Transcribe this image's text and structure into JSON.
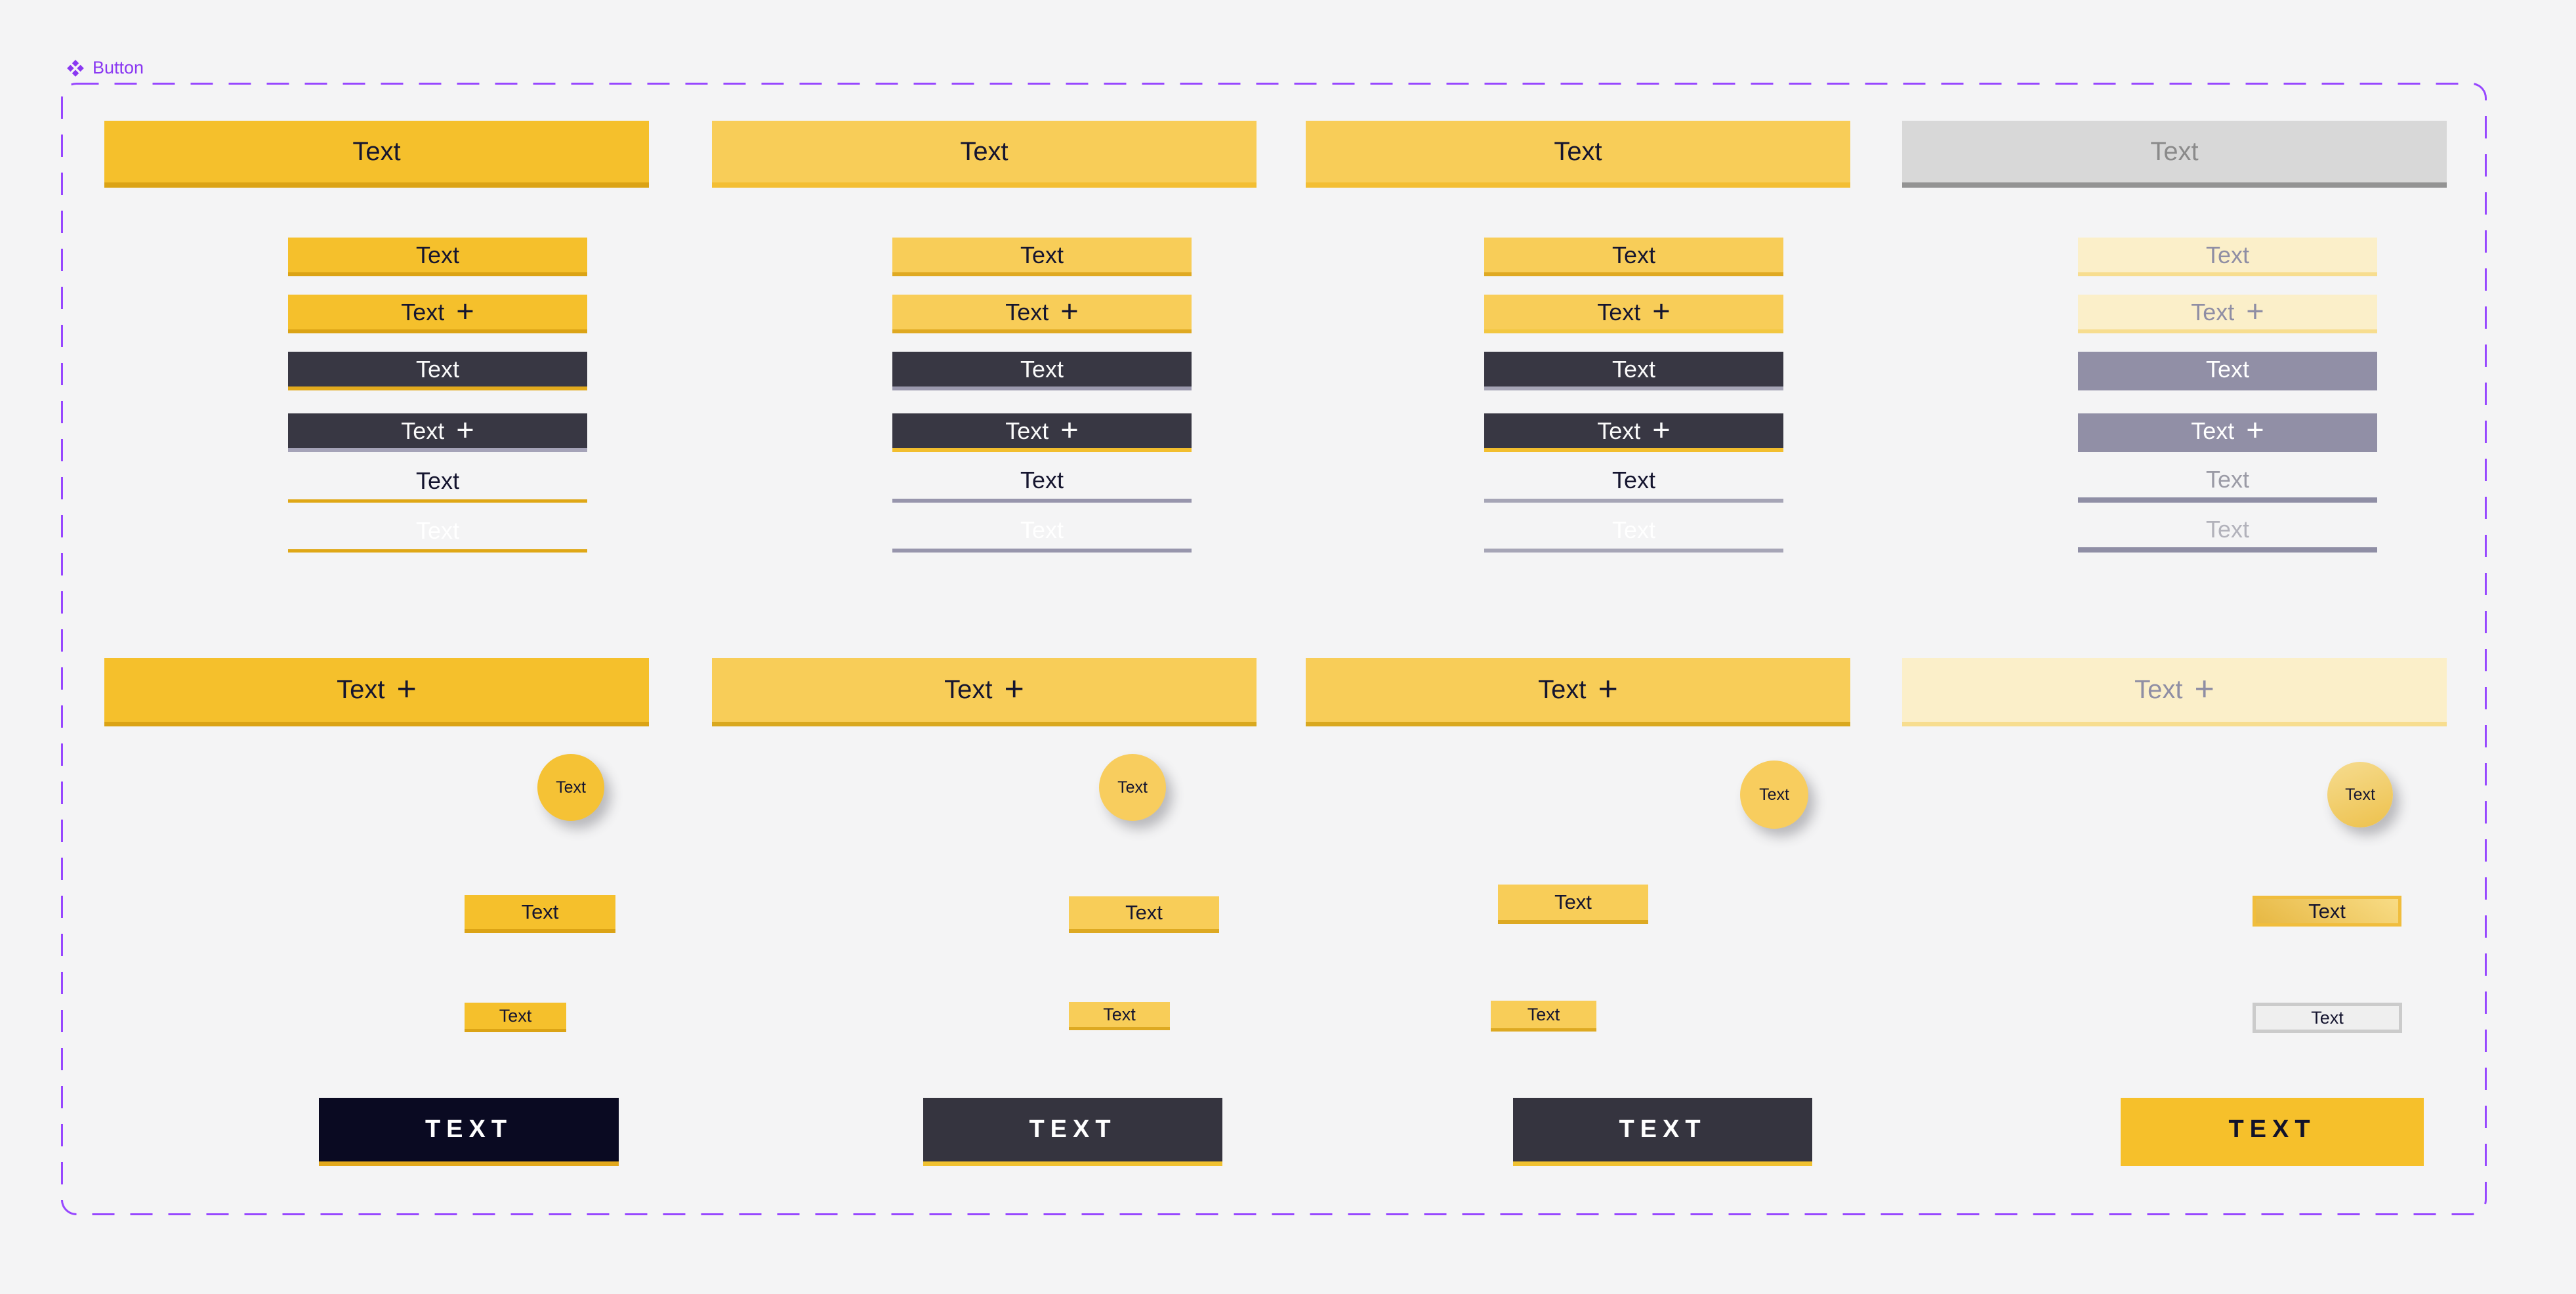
{
  "canvas": {
    "background": "#F4F4F5"
  },
  "component_set": {
    "label": "Button",
    "accent": "#8A38F2",
    "frame_border": "#9747FF"
  },
  "columns": [
    {
      "name": "variant-strong-yellow",
      "top": {
        "label": "Text",
        "bg": "#F5C02C",
        "border": "#DBA315",
        "color": "#15152F"
      },
      "rows": [
        {
          "label": "Text",
          "icon": null,
          "bg": "#F5C02C",
          "border": "#DBA315",
          "color": "#15152F"
        },
        {
          "label": "Text",
          "icon": "plus",
          "bg": "#F5C02C",
          "border": "#DBA315",
          "color": "#15152F"
        },
        {
          "label": "Text",
          "icon": null,
          "bg": "#383743",
          "border": "#E2AA1D",
          "color": "#FAFAFA"
        },
        {
          "label": "Text",
          "icon": "plus",
          "bg": "#383743",
          "border": "#A5A3B8",
          "color": "#FAFAFA"
        },
        {
          "type": "link",
          "label": "Text",
          "color": "#15152F",
          "underline": "#DFA716"
        },
        {
          "type": "link",
          "label": "Text",
          "color": "rgba(255,255,255,0.92)",
          "underline": "#DFA716"
        }
      ],
      "wide": {
        "label": "Text",
        "icon": "plus",
        "bg": "#F5C02C",
        "border": "#DBA315",
        "color": "#15152F"
      },
      "circle": {
        "label": "Text",
        "bg": "#F5C235",
        "color": "#15152F"
      },
      "small": {
        "label": "Text",
        "bg": "#F5C02C",
        "border": "#DBA315",
        "color": "#15152F"
      },
      "tiny": {
        "label": "Text",
        "bg": "#F5C02C",
        "border": "#DBA315",
        "color": "#15152F"
      },
      "cta": {
        "label": "TEXT",
        "bg": "#0A0A22",
        "border": "#E2A81C",
        "color": "#FFFFFF"
      }
    },
    {
      "name": "variant-light-yellow-a",
      "top": {
        "label": "Text",
        "bg": "#F8CD58",
        "border": "#F3BE33",
        "color": "#15152F"
      },
      "rows": [
        {
          "label": "Text",
          "icon": null,
          "bg": "#F8CD58",
          "border": "#DFA922",
          "color": "#15152F"
        },
        {
          "label": "Text",
          "icon": "plus",
          "bg": "#F8CD58",
          "border": "#DFA922",
          "color": "#15152F"
        },
        {
          "label": "Text",
          "icon": null,
          "bg": "#383743",
          "border": "#9B99AE",
          "color": "#FAFAFA"
        },
        {
          "label": "Text",
          "icon": "plus",
          "bg": "#383743",
          "border": "#F2BE2E",
          "color": "#FAFAFA"
        },
        {
          "type": "link",
          "label": "Text",
          "color": "#15152F",
          "underline": "#9795AC"
        },
        {
          "type": "link",
          "label": "Text",
          "color": "rgba(255,255,255,0.92)",
          "underline": "#9795AC"
        }
      ],
      "wide": {
        "label": "Text",
        "icon": "plus",
        "bg": "#F8CD58",
        "border": "#D9A81F",
        "color": "#15152F"
      },
      "circle": {
        "label": "Text",
        "bg": "#F8CD5E",
        "color": "#15152F"
      },
      "small": {
        "label": "Text",
        "bg": "#F8CD58",
        "border": "#DDA922",
        "color": "#15152F"
      },
      "tiny": {
        "label": "Text",
        "bg": "#F8CD58",
        "border": "#DDA922",
        "color": "#15152F"
      },
      "cta": {
        "label": "TEXT",
        "bg": "#35343F",
        "border": "#F0C130",
        "color": "#FFFFFF"
      }
    },
    {
      "name": "variant-light-yellow-b",
      "top": {
        "label": "Text",
        "bg": "#F8CD58",
        "border": "#F3BE33",
        "color": "#15152F"
      },
      "rows": [
        {
          "label": "Text",
          "icon": null,
          "bg": "#F8CD58",
          "border": "#DFA922",
          "color": "#15152F"
        },
        {
          "label": "Text",
          "icon": "plus",
          "bg": "#F8CD58",
          "border": "#F2C741",
          "color": "#15152F"
        },
        {
          "label": "Text",
          "icon": null,
          "bg": "#383743",
          "border": "#A6A5B6",
          "color": "#FAFAFA"
        },
        {
          "label": "Text",
          "icon": "plus",
          "bg": "#383743",
          "border": "#F2BE2E",
          "color": "#FAFAFA"
        },
        {
          "type": "link",
          "label": "Text",
          "color": "#15152F",
          "underline": "#A6A5B6"
        },
        {
          "type": "link",
          "label": "Text",
          "color": "rgba(255,255,255,0.92)",
          "underline": "#A6A5B6"
        }
      ],
      "wide": {
        "label": "Text",
        "icon": "plus",
        "bg": "#F8CD58",
        "border": "#D9A81F",
        "color": "#15152F"
      },
      "circle": {
        "label": "Text",
        "bg": "#F8CD5E",
        "color": "#15152F"
      },
      "small": {
        "label": "Text",
        "bg": "#F8CD58",
        "border": "#DDA922",
        "color": "#15152F"
      },
      "tiny": {
        "label": "Text",
        "bg": "#F8CD58",
        "border": "#DDA922",
        "color": "#15152F"
      },
      "cta": {
        "label": "TEXT",
        "bg": "#35343F",
        "border": "#F0C130",
        "color": "#FFFFFF"
      }
    },
    {
      "name": "variant-disabled",
      "top": {
        "label": "Text",
        "bg": "#D8D8D8",
        "border": "#939393",
        "color": "#8A8A8A"
      },
      "rows": [
        {
          "label": "Text",
          "icon": null,
          "bg": "#FBEFC9",
          "border": "#F7DD8F",
          "color": "#8F8EA4"
        },
        {
          "label": "Text",
          "icon": "plus",
          "bg": "#FBEFC9",
          "border": "#F7DD8F",
          "color": "#8F8EA4"
        },
        {
          "label": "Text",
          "icon": null,
          "bg": "#918FA6",
          "border": "transparent",
          "color": "#FFFFFF"
        },
        {
          "label": "Text",
          "icon": "plus",
          "bg": "#918FA6",
          "border": "transparent",
          "color": "#FFFFFF"
        },
        {
          "type": "link",
          "label": "Text",
          "color": "#9B9BA6",
          "underline": "#8F8EA5"
        },
        {
          "type": "link",
          "label": "Text",
          "color": "#B2B2BB",
          "underline": "#8F8EA5"
        }
      ],
      "wide": {
        "label": "Text",
        "icon": "plus",
        "bg": "#FBEFC9",
        "border": "#F7DD8F",
        "color": "#8F8EA4"
      },
      "circle": {
        "label": "Text",
        "bg": "linear-gradient(160deg,#F6DC90,#EDC14C)",
        "color": "#15152F"
      },
      "small": {
        "label": "Text",
        "bg": "linear-gradient(35deg,#E7B843,#F8DC86)",
        "outline": "#F0BD3D",
        "color": "#15152F"
      },
      "tiny": {
        "label": "Text",
        "bg": "#EFEFEF",
        "outline": "#CBCBCB",
        "color": "#15152F"
      },
      "cta": {
        "label": "TEXT",
        "bg": "#F6C02B",
        "border": "transparent",
        "color": "#12122A"
      }
    }
  ]
}
